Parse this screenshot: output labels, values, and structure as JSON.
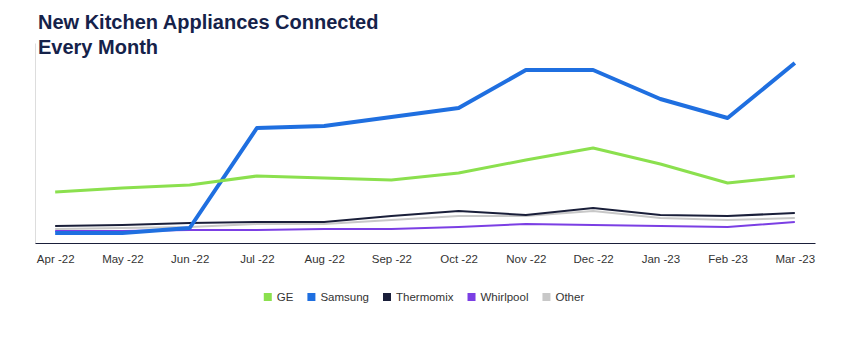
{
  "chart_data": {
    "type": "line",
    "title": [
      "New Kitchen Appliances Connected",
      "Every Month"
    ],
    "categories": [
      "Apr -22",
      "May -22",
      "Jun -22",
      "Jul -22",
      "Aug -22",
      "Sep -22",
      "Oct -22",
      "Nov -22",
      "Dec -22",
      "Jan -23",
      "Feb -23",
      "Mar -23"
    ],
    "series": [
      {
        "name": "GE",
        "color": "#8be04e",
        "values": [
          25.5,
          27.5,
          29,
          33.5,
          32.5,
          31.5,
          35,
          41.5,
          47.5,
          39.5,
          30,
          33.5
        ]
      },
      {
        "name": "Samsung",
        "color": "#1f6fe0",
        "values": [
          5,
          5,
          7.5,
          57.5,
          58.5,
          63,
          67.5,
          86.5,
          86.5,
          72,
          62.5,
          90
        ]
      },
      {
        "name": "Thermomix",
        "color": "#1a1f3a",
        "values": [
          8.5,
          9,
          10,
          10.5,
          10.5,
          13.5,
          16,
          14,
          17.5,
          14,
          13.5,
          15
        ]
      },
      {
        "name": "Whirlpool",
        "color": "#7b3fe4",
        "values": [
          6,
          6,
          6.5,
          6.5,
          7,
          7,
          8,
          9.5,
          9,
          8.5,
          8,
          10.5
        ]
      },
      {
        "name": "Other",
        "color": "#c8c8c8",
        "values": [
          7,
          7.5,
          8,
          9.5,
          9.5,
          11.5,
          13.5,
          13.5,
          16,
          12.5,
          11.5,
          12.5
        ]
      }
    ],
    "ylim": [
      0,
      100
    ],
    "yticks": [],
    "grid": false,
    "legend": "bottom",
    "tick_labels": "x"
  }
}
